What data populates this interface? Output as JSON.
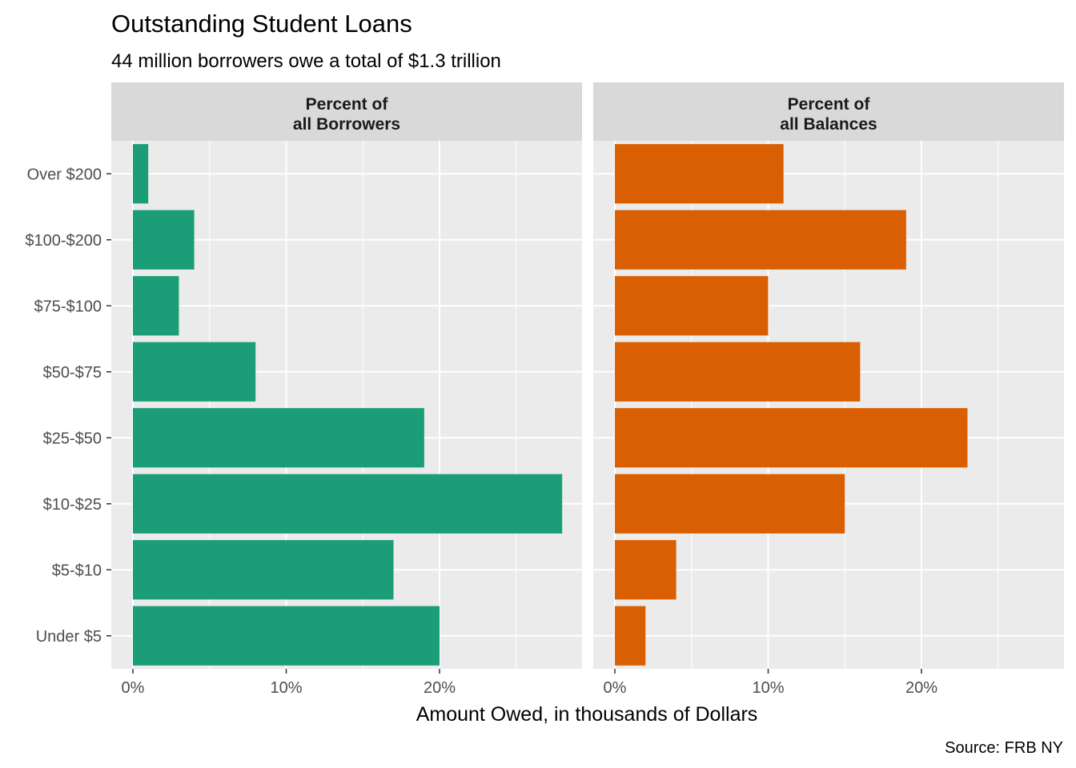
{
  "chart_data": {
    "type": "bar",
    "orientation": "horizontal",
    "title": "Outstanding Student Loans",
    "subtitle": "44 million borrowers owe a total of $1.3 trillion",
    "xlabel": "Amount Owed, in thousands of Dollars",
    "ylabel": "",
    "caption": "Source: FRB NY",
    "categories": [
      "Under $5",
      "$5-$10",
      "$10-$25",
      "$25-$50",
      "$50-$75",
      "$75-$100",
      "$100-$200",
      "Over $200"
    ],
    "x_ticks": [
      "0%",
      "10%",
      "20%"
    ],
    "xlim": [
      0,
      29
    ],
    "grid": true,
    "legend": "none",
    "panels": [
      {
        "strip_label": [
          "Percent of",
          "all Borrowers"
        ],
        "color": "#1b9e77",
        "values": [
          20,
          17,
          28,
          19,
          8,
          3,
          4,
          1
        ]
      },
      {
        "strip_label": [
          "Percent of",
          "all Balances"
        ],
        "color": "#d95f02",
        "values": [
          2,
          4,
          15,
          23,
          16,
          10,
          19,
          11
        ]
      }
    ]
  }
}
